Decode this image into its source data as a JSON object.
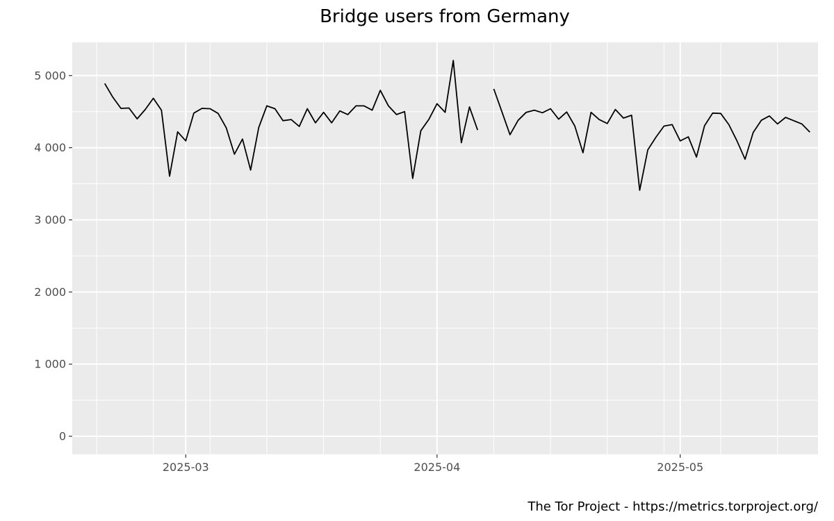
{
  "caption": "The Tor Project - https://metrics.torproject.org/",
  "colors": {
    "panel": "#ebebeb",
    "grid": "#ffffff",
    "line": "#000000",
    "tick_text": "#4d4d4d"
  },
  "chart_data": {
    "type": "line",
    "title": "Bridge users from Germany",
    "xlabel": "",
    "ylabel": "",
    "x_axis": {
      "type": "date",
      "range": [
        "2025-02-15",
        "2025-05-18"
      ],
      "ticks": [
        {
          "date": "2025-03-01",
          "label": "2025-03"
        },
        {
          "date": "2025-04-01",
          "label": "2025-04"
        },
        {
          "date": "2025-05-01",
          "label": "2025-05"
        }
      ],
      "minor_gridlines": [
        "2025-02-18",
        "2025-02-25",
        "2025-03-04",
        "2025-03-11",
        "2025-03-18",
        "2025-03-25",
        "2025-04-08",
        "2025-04-15",
        "2025-04-22",
        "2025-04-29",
        "2025-05-06",
        "2025-05-13"
      ]
    },
    "y_axis": {
      "range": [
        -250,
        5460
      ],
      "ticks": [
        {
          "value": 0,
          "label": "0"
        },
        {
          "value": 1000,
          "label": "1 000"
        },
        {
          "value": 2000,
          "label": "2 000"
        },
        {
          "value": 3000,
          "label": "3 000"
        },
        {
          "value": 4000,
          "label": "4 000"
        },
        {
          "value": 5000,
          "label": "5 000"
        }
      ]
    },
    "grid": true,
    "legend": "none",
    "series": [
      {
        "points": [
          [
            "2025-02-19",
            4890
          ],
          [
            "2025-02-20",
            4700
          ],
          [
            "2025-02-21",
            4545
          ],
          [
            "2025-02-22",
            4550
          ],
          [
            "2025-02-23",
            4400
          ],
          [
            "2025-02-24",
            4530
          ],
          [
            "2025-02-25",
            4685
          ],
          [
            "2025-02-26",
            4520
          ],
          [
            "2025-02-27",
            3605
          ],
          [
            "2025-02-28",
            4220
          ],
          [
            "2025-03-01",
            4095
          ],
          [
            "2025-03-02",
            4480
          ],
          [
            "2025-03-03",
            4545
          ],
          [
            "2025-03-04",
            4540
          ],
          [
            "2025-03-05",
            4475
          ],
          [
            "2025-03-06",
            4275
          ],
          [
            "2025-03-07",
            3910
          ],
          [
            "2025-03-08",
            4120
          ],
          [
            "2025-03-09",
            3690
          ],
          [
            "2025-03-10",
            4280
          ],
          [
            "2025-03-11",
            4580
          ],
          [
            "2025-03-12",
            4540
          ],
          [
            "2025-03-13",
            4375
          ],
          [
            "2025-03-14",
            4390
          ],
          [
            "2025-03-15",
            4295
          ],
          [
            "2025-03-16",
            4540
          ],
          [
            "2025-03-17",
            4345
          ],
          [
            "2025-03-18",
            4490
          ],
          [
            "2025-03-19",
            4345
          ],
          [
            "2025-03-20",
            4510
          ],
          [
            "2025-03-21",
            4460
          ],
          [
            "2025-03-22",
            4580
          ],
          [
            "2025-03-23",
            4580
          ],
          [
            "2025-03-24",
            4520
          ],
          [
            "2025-03-25",
            4795
          ],
          [
            "2025-03-26",
            4580
          ],
          [
            "2025-03-27",
            4460
          ],
          [
            "2025-03-28",
            4500
          ],
          [
            "2025-03-29",
            3575
          ],
          [
            "2025-03-30",
            4235
          ],
          [
            "2025-03-31",
            4395
          ],
          [
            "2025-04-01",
            4610
          ],
          [
            "2025-04-02",
            4490
          ],
          [
            "2025-04-03",
            5210
          ],
          [
            "2025-04-04",
            4070
          ],
          [
            "2025-04-05",
            4565
          ],
          [
            "2025-04-06",
            4245
          ],
          [
            "2025-04-07",
            null
          ],
          [
            "2025-04-08",
            4815
          ],
          [
            "2025-04-09",
            4500
          ],
          [
            "2025-04-10",
            4180
          ],
          [
            "2025-04-11",
            4380
          ],
          [
            "2025-04-12",
            4490
          ],
          [
            "2025-04-13",
            4520
          ],
          [
            "2025-04-14",
            4485
          ],
          [
            "2025-04-15",
            4540
          ],
          [
            "2025-04-16",
            4395
          ],
          [
            "2025-04-17",
            4495
          ],
          [
            "2025-04-18",
            4300
          ],
          [
            "2025-04-19",
            3930
          ],
          [
            "2025-04-20",
            4490
          ],
          [
            "2025-04-21",
            4390
          ],
          [
            "2025-04-22",
            4335
          ],
          [
            "2025-04-23",
            4530
          ],
          [
            "2025-04-24",
            4410
          ],
          [
            "2025-04-25",
            4450
          ],
          [
            "2025-04-26",
            3410
          ],
          [
            "2025-04-27",
            3970
          ],
          [
            "2025-04-28",
            4145
          ],
          [
            "2025-04-29",
            4300
          ],
          [
            "2025-04-30",
            4320
          ],
          [
            "2025-05-01",
            4095
          ],
          [
            "2025-05-02",
            4150
          ],
          [
            "2025-05-03",
            3870
          ],
          [
            "2025-05-04",
            4305
          ],
          [
            "2025-05-05",
            4480
          ],
          [
            "2025-05-06",
            4475
          ],
          [
            "2025-05-07",
            4320
          ],
          [
            "2025-05-08",
            4095
          ],
          [
            "2025-05-09",
            3840
          ],
          [
            "2025-05-10",
            4210
          ],
          [
            "2025-05-11",
            4380
          ],
          [
            "2025-05-12",
            4440
          ],
          [
            "2025-05-13",
            4330
          ],
          [
            "2025-05-14",
            4420
          ],
          [
            "2025-05-15",
            4375
          ],
          [
            "2025-05-16",
            4330
          ],
          [
            "2025-05-17",
            4215
          ]
        ]
      }
    ]
  }
}
